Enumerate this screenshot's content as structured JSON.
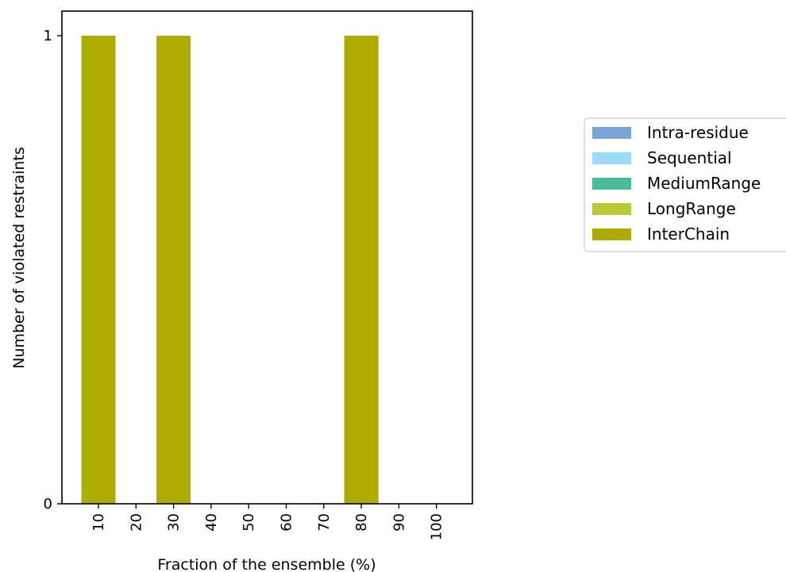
{
  "chart_data": {
    "type": "bar",
    "stacked": true,
    "categories": [
      "10",
      "20",
      "30",
      "40",
      "50",
      "60",
      "70",
      "80",
      "90",
      "100"
    ],
    "series": [
      {
        "name": "Intra-residue",
        "color": "#79a6d6",
        "values": [
          0,
          0,
          0,
          0,
          0,
          0,
          0,
          0,
          0,
          0
        ]
      },
      {
        "name": "Sequential",
        "color": "#9bdcfa",
        "values": [
          0,
          0,
          0,
          0,
          0,
          0,
          0,
          0,
          0,
          0
        ]
      },
      {
        "name": "MediumRange",
        "color": "#49bb99",
        "values": [
          0,
          0,
          0,
          0,
          0,
          0,
          0,
          0,
          0,
          0
        ]
      },
      {
        "name": "LongRange",
        "color": "#b9c936",
        "values": [
          0,
          0,
          0,
          0,
          0,
          0,
          0,
          0,
          0,
          0
        ]
      },
      {
        "name": "InterChain",
        "color": "#adab00",
        "values": [
          1,
          0,
          1,
          0,
          0,
          0,
          0,
          1,
          0,
          0
        ]
      }
    ],
    "title": "",
    "xlabel": "Fraction of the ensemble (%)",
    "ylabel": "Number of violated restraints",
    "yticks": [
      "0",
      "1"
    ],
    "ylim": [
      0,
      1.05
    ],
    "grid": false,
    "legend_position": "right, outside plot"
  }
}
